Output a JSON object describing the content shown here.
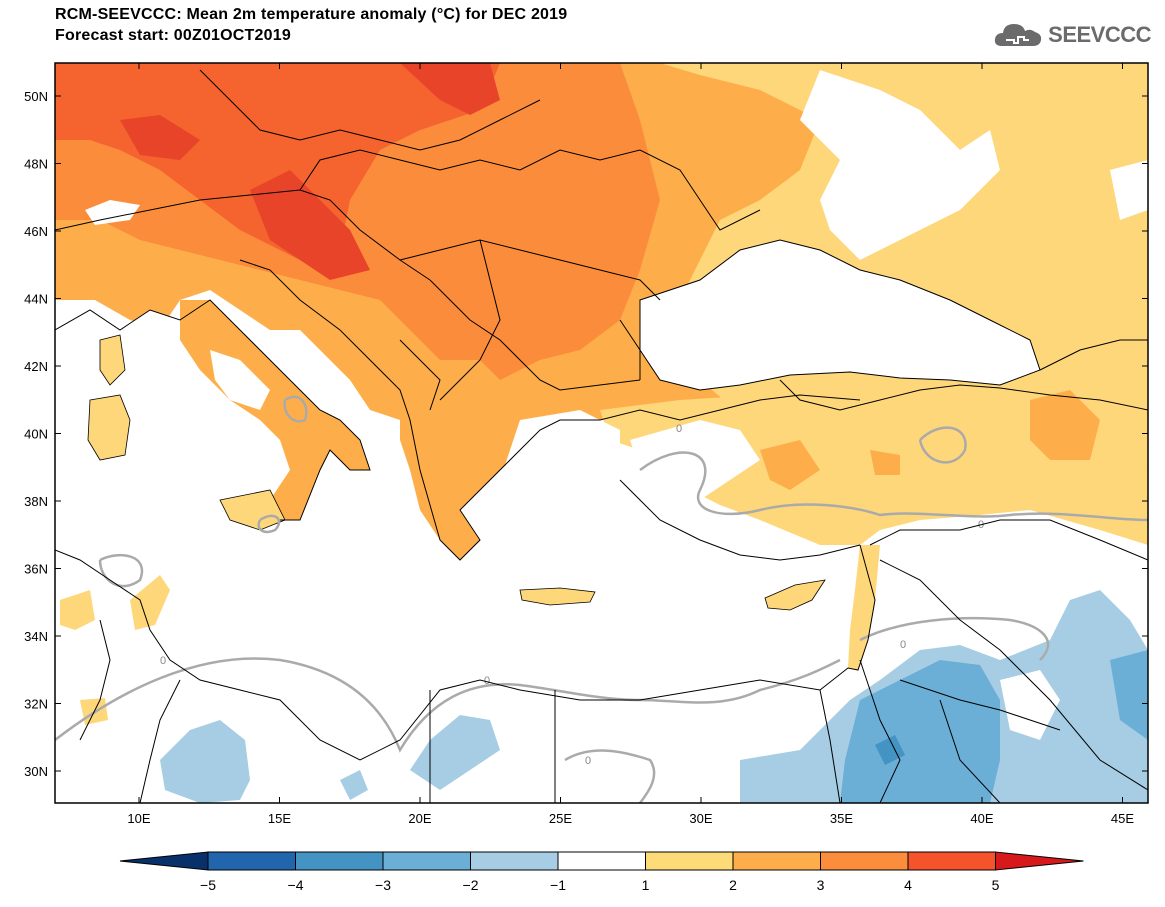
{
  "header": {
    "title": "RCM-SEEVCCC: Mean 2m temperature anomaly (°C) for DEC 2019",
    "subtitle": "Forecast start: 00Z01OCT2019",
    "logo_text": "SEEVCCC",
    "logo_icon": "cloud-icon"
  },
  "map": {
    "lat_labels": [
      "50N",
      "48N",
      "46N",
      "44N",
      "42N",
      "40N",
      "38N",
      "36N",
      "34N",
      "32N",
      "30N"
    ],
    "lon_labels": [
      "10E",
      "15E",
      "20E",
      "25E",
      "30E",
      "35E",
      "40E",
      "45E"
    ],
    "contour_label": "0"
  },
  "colorbar": {
    "ticks": [
      "−5",
      "−4",
      "−3",
      "−2",
      "−1",
      "1",
      "2",
      "3",
      "4",
      "5"
    ],
    "colors": [
      "#08306b",
      "#2166ac",
      "#4393c3",
      "#6baed6",
      "#a6cde3",
      "#ffffff",
      "#fedb79",
      "#fdae4b",
      "#fc8d3c",
      "#f5532b",
      "#d7191c"
    ]
  },
  "palette": {
    "deep_red": "#e8442a",
    "red": "#f5632e",
    "orange_dark": "#fb8c3b",
    "orange": "#fdae4b",
    "yellow": "#fed77a",
    "blue_light": "#a6cde3",
    "blue": "#6baed6",
    "blue_mid": "#4393c3",
    "border": "#000000",
    "contour": "#aaaaaa"
  }
}
